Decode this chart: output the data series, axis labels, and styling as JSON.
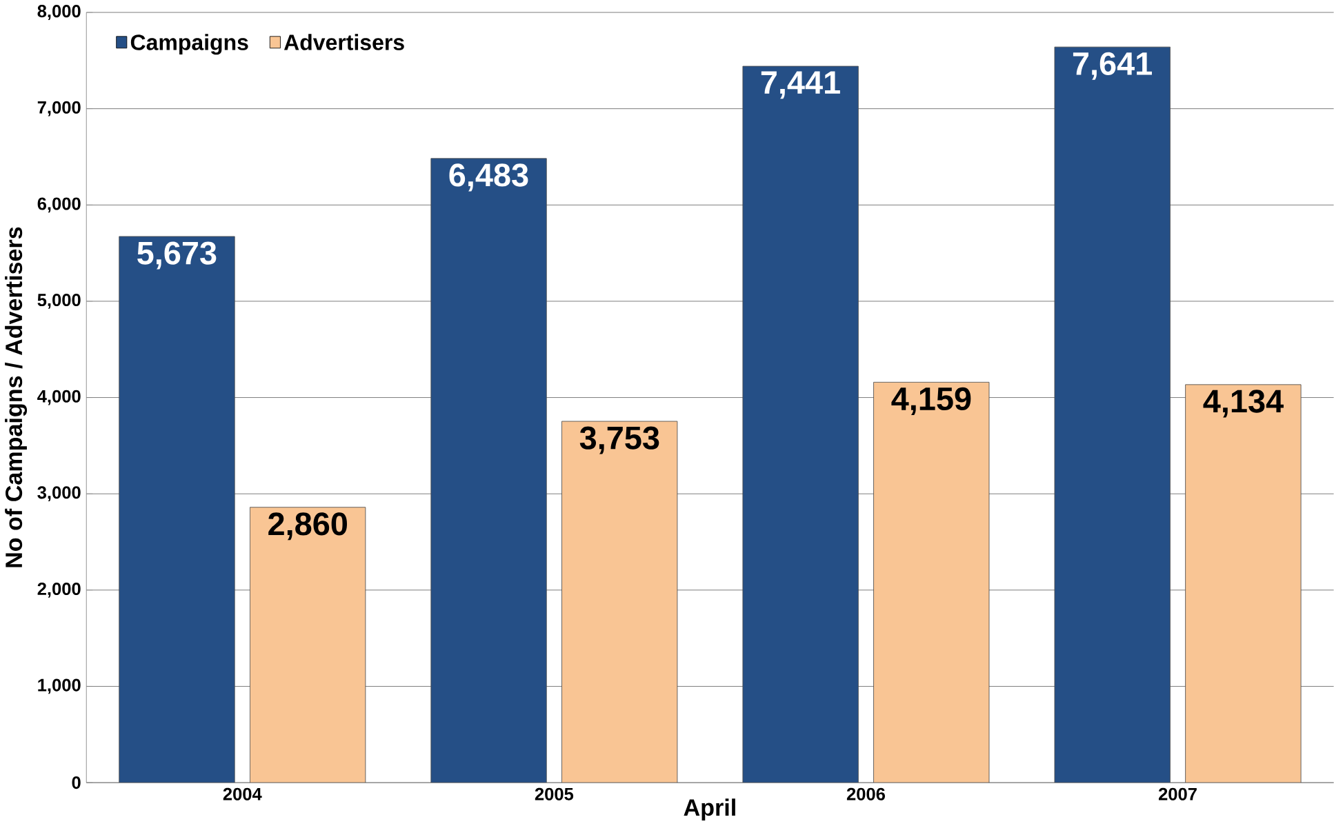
{
  "chart_data": {
    "type": "bar",
    "xlabel": "April",
    "ylabel": "No of Campaigns /  Advertisers",
    "categories": [
      "2004",
      "2005",
      "2006",
      "2007"
    ],
    "series": [
      {
        "name": "Campaigns",
        "color": "#254f86",
        "values": [
          5673,
          6483,
          7441,
          7641
        ],
        "value_labels": [
          "5,673",
          "6,483",
          "7,441",
          "7,641"
        ]
      },
      {
        "name": "Advertisers",
        "color": "#f9c594",
        "values": [
          2860,
          3753,
          4159,
          4134
        ],
        "value_labels": [
          "2,860",
          "3,753",
          "4,159",
          "4,134"
        ]
      }
    ],
    "ylim": [
      0,
      8000
    ],
    "yticks": [
      0,
      {
        "value": 1000,
        "label": "1,000"
      },
      {
        "value": 2000,
        "label": "2,000"
      },
      {
        "value": 3000,
        "label": "3,000"
      },
      {
        "value": 4000,
        "label": "4,000"
      },
      {
        "value": 5000,
        "label": "5,000"
      },
      {
        "value": 6000,
        "label": "6,000"
      },
      {
        "value": 7000,
        "label": "7,000"
      },
      {
        "value": 8000,
        "label": "8,000"
      }
    ],
    "grid": "y",
    "legend": "top left"
  }
}
